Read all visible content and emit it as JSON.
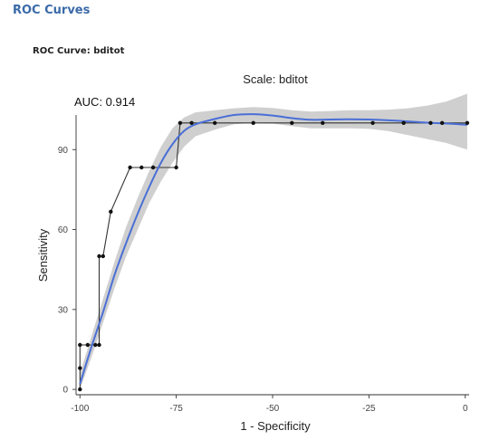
{
  "section_title": "ROC Curves",
  "chart_heading": "ROC Curve: bditot",
  "chart_data": {
    "type": "line",
    "title": "Scale: bditot",
    "annotation": "AUC: 0.914",
    "xlabel": "1 - Specificity",
    "ylabel": "Sensitivity",
    "xlim": [
      -101,
      1
    ],
    "ylim": [
      -2,
      103
    ],
    "xticks": [
      -100,
      -75,
      -50,
      -25,
      0
    ],
    "yticks": [
      0,
      30,
      60,
      90
    ],
    "grid": false,
    "series": [
      {
        "kind": "empirical",
        "color": "#333333",
        "x": [
          -100,
          -100,
          -100,
          -98,
          -96,
          -95,
          -95,
          -94,
          -92,
          -87,
          -84,
          -81,
          -75,
          -74,
          -71,
          -65,
          -55,
          -45,
          -37,
          -24,
          -16,
          -9,
          -6,
          0.5
        ],
        "y": [
          0,
          8,
          16.7,
          16.7,
          16.7,
          16.7,
          50,
          50,
          66.7,
          83.3,
          83.3,
          83.3,
          83.3,
          100,
          100,
          100,
          100,
          100,
          100,
          100,
          100,
          100,
          100,
          100
        ]
      },
      {
        "kind": "smoothed",
        "color": "#4a6fd6",
        "band_color": "#cfcfcf",
        "x": [
          -100,
          -97,
          -94,
          -91,
          -88,
          -85,
          -82,
          -79,
          -76,
          -73,
          -70,
          -65,
          -60,
          -55,
          -50,
          -45,
          -40,
          -35,
          -30,
          -25,
          -20,
          -15,
          -10,
          -5,
          0.5
        ],
        "y": [
          2,
          16,
          29,
          43,
          55,
          66,
          76,
          85,
          92,
          97,
          99.5,
          101.5,
          103,
          103.3,
          102.8,
          101.8,
          101.2,
          101.3,
          101.4,
          101.3,
          101,
          100.6,
          100.1,
          99.8,
          99.3
        ],
        "lower": [
          0,
          12,
          25,
          38,
          50,
          60,
          70,
          78,
          85,
          91,
          95,
          97.5,
          99.5,
          100,
          99.8,
          98.8,
          98,
          98,
          98,
          97.8,
          97,
          95.5,
          94,
          92.5,
          90
        ],
        "upper": [
          6,
          20,
          34,
          48,
          61,
          72,
          82,
          91,
          98,
          102,
          104,
          104.8,
          105.5,
          106,
          105.6,
          104.8,
          104.3,
          104.5,
          104.8,
          104.8,
          105,
          105.5,
          106.5,
          108,
          111
        ]
      }
    ]
  }
}
